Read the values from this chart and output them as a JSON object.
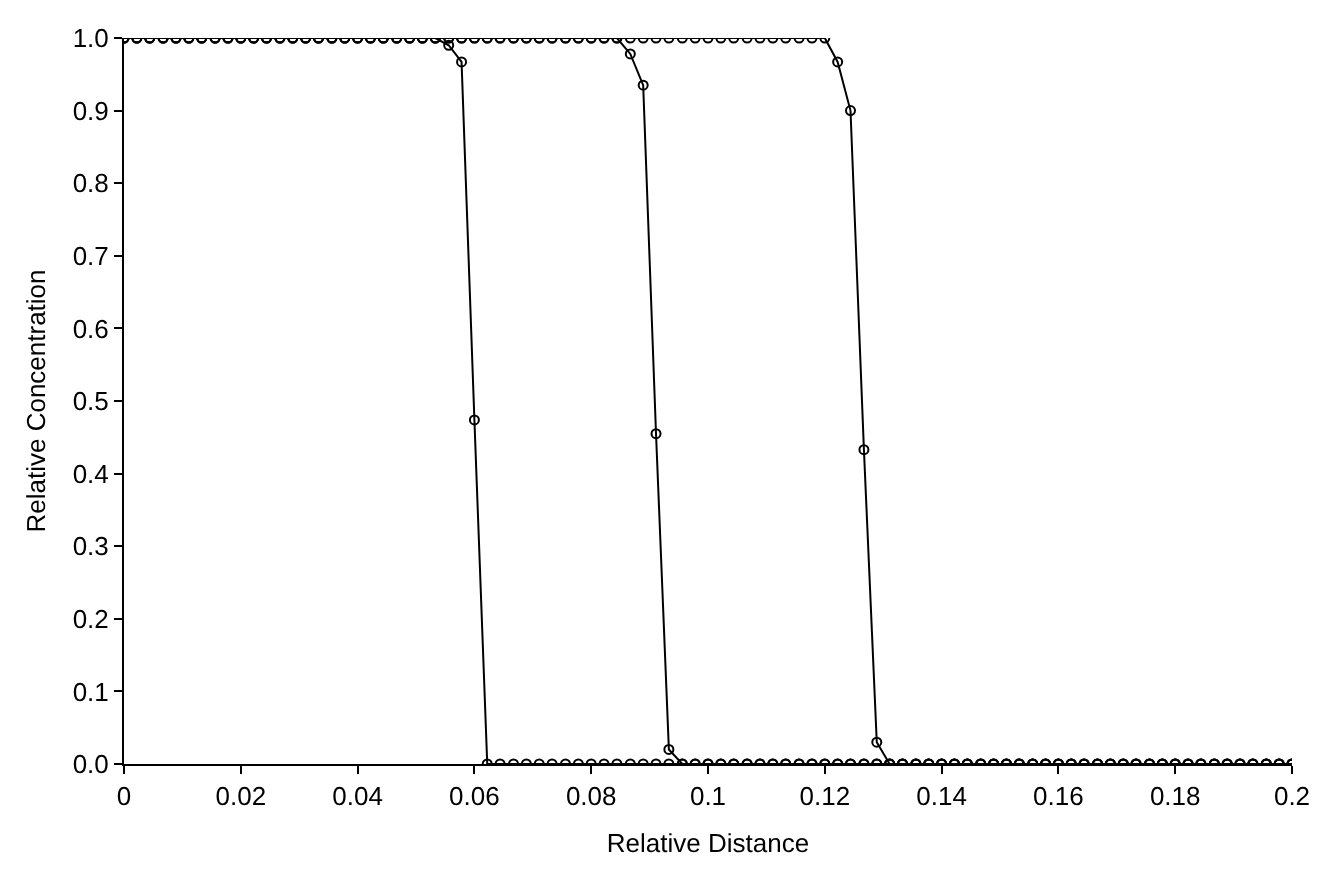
{
  "chart_data": {
    "type": "line",
    "xlabel": "Relative Distance",
    "ylabel": "Relative Concentration",
    "x": [
      0,
      0.0022,
      0.0044,
      0.0067,
      0.0089,
      0.0111,
      0.0133,
      0.0156,
      0.0178,
      0.02,
      0.0222,
      0.0244,
      0.0267,
      0.0289,
      0.0311,
      0.0333,
      0.0356,
      0.0378,
      0.04,
      0.0422,
      0.0444,
      0.0467,
      0.0489,
      0.0511,
      0.0533,
      0.0556,
      0.0578,
      0.06,
      0.0622,
      0.0644,
      0.0667,
      0.0689,
      0.0711,
      0.0733,
      0.0756,
      0.0778,
      0.08,
      0.0822,
      0.0844,
      0.0867,
      0.0889,
      0.0911,
      0.0933,
      0.0956,
      0.0978,
      0.1,
      0.1022,
      0.1044,
      0.1067,
      0.1089,
      0.1111,
      0.1133,
      0.1156,
      0.1178,
      0.12,
      0.1222,
      0.1244,
      0.1267,
      0.1289,
      0.1311,
      0.1333,
      0.1356,
      0.1378,
      0.14,
      0.1422,
      0.1444,
      0.1467,
      0.1489,
      0.1511,
      0.1533,
      0.1556,
      0.1578,
      0.16,
      0.1622,
      0.1644,
      0.1667,
      0.1689,
      0.1711,
      0.1733,
      0.1756,
      0.1778,
      0.18,
      0.1822,
      0.1844,
      0.1867,
      0.1889,
      0.1911,
      0.1933,
      0.1956,
      0.1978,
      0.2
    ],
    "series": [
      {
        "color": "#000000",
        "values": [
          1,
          1,
          1,
          1,
          1,
          1,
          1,
          1,
          1,
          1,
          1,
          1,
          1,
          1,
          1,
          1,
          1,
          1,
          1,
          1,
          1,
          1,
          1,
          1,
          1,
          0.99,
          0.967,
          0.474,
          0,
          0,
          0,
          0,
          0,
          0,
          0,
          0,
          0,
          0,
          0,
          0,
          0,
          0,
          0,
          0,
          0,
          0,
          0,
          0,
          0,
          0,
          0,
          0,
          0,
          0,
          0,
          0,
          0,
          0,
          0,
          0,
          0,
          0,
          0,
          0,
          0,
          0,
          0,
          0,
          0,
          0,
          0,
          0,
          0,
          0,
          0,
          0,
          0,
          0,
          0,
          0,
          0,
          0,
          0,
          0,
          0,
          0,
          0,
          0,
          0,
          0,
          0
        ]
      },
      {
        "color": "#000000",
        "values": [
          1,
          1,
          1,
          1,
          1,
          1,
          1,
          1,
          1,
          1,
          1,
          1,
          1,
          1,
          1,
          1,
          1,
          1,
          1,
          1,
          1,
          1,
          1,
          1,
          1,
          1,
          1,
          1,
          1,
          1,
          1,
          1,
          1,
          1,
          1,
          1,
          1,
          1,
          1,
          0.978,
          0.935,
          0.455,
          0.02,
          0,
          0,
          0,
          0,
          0,
          0,
          0,
          0,
          0,
          0,
          0,
          0,
          0,
          0,
          0,
          0,
          0,
          0,
          0,
          0,
          0,
          0,
          0,
          0,
          0,
          0,
          0,
          0,
          0,
          0,
          0,
          0,
          0,
          0,
          0,
          0,
          0,
          0,
          0,
          0,
          0,
          0,
          0,
          0,
          0,
          0,
          0,
          0
        ]
      },
      {
        "color": "#000000",
        "values": [
          1,
          1,
          1,
          1,
          1,
          1,
          1,
          1,
          1,
          1,
          1,
          1,
          1,
          1,
          1,
          1,
          1,
          1,
          1,
          1,
          1,
          1,
          1,
          1,
          1,
          1,
          1,
          1,
          1,
          1,
          1,
          1,
          1,
          1,
          1,
          1,
          1,
          1,
          1,
          1,
          1,
          1,
          1,
          1,
          1,
          1,
          1,
          1,
          1,
          1,
          1,
          1,
          1,
          1,
          1,
          0.967,
          0.9,
          0.433,
          0.03,
          0,
          0,
          0,
          0,
          0,
          0,
          0,
          0,
          0,
          0,
          0,
          0,
          0,
          0,
          0,
          0,
          0,
          0,
          0,
          0,
          0,
          0,
          0,
          0,
          0,
          0,
          0,
          0,
          0,
          0,
          0,
          0
        ]
      }
    ],
    "xlim": [
      0,
      0.2
    ],
    "xticks": [
      0,
      0.02,
      0.04,
      0.06,
      0.08,
      0.1,
      0.12,
      0.14,
      0.16,
      0.18,
      0.2
    ],
    "ylim": [
      0,
      1
    ],
    "yticks": [
      {
        "value": 0,
        "label": "0.0"
      },
      {
        "value": 0.1,
        "label": "0.1"
      },
      {
        "value": 0.2,
        "label": "0.2"
      },
      {
        "value": 0.3,
        "label": "0.3"
      },
      {
        "value": 0.4,
        "label": "0.4"
      },
      {
        "value": 0.5,
        "label": "0.5"
      },
      {
        "value": 0.6,
        "label": "0.6"
      },
      {
        "value": 0.7,
        "label": "0.7"
      },
      {
        "value": 0.8,
        "label": "0.8"
      },
      {
        "value": 0.9,
        "label": "0.9"
      },
      {
        "value": 1,
        "label": "1.0"
      }
    ],
    "grid": false,
    "marker": "circle",
    "line_style": "solid"
  }
}
